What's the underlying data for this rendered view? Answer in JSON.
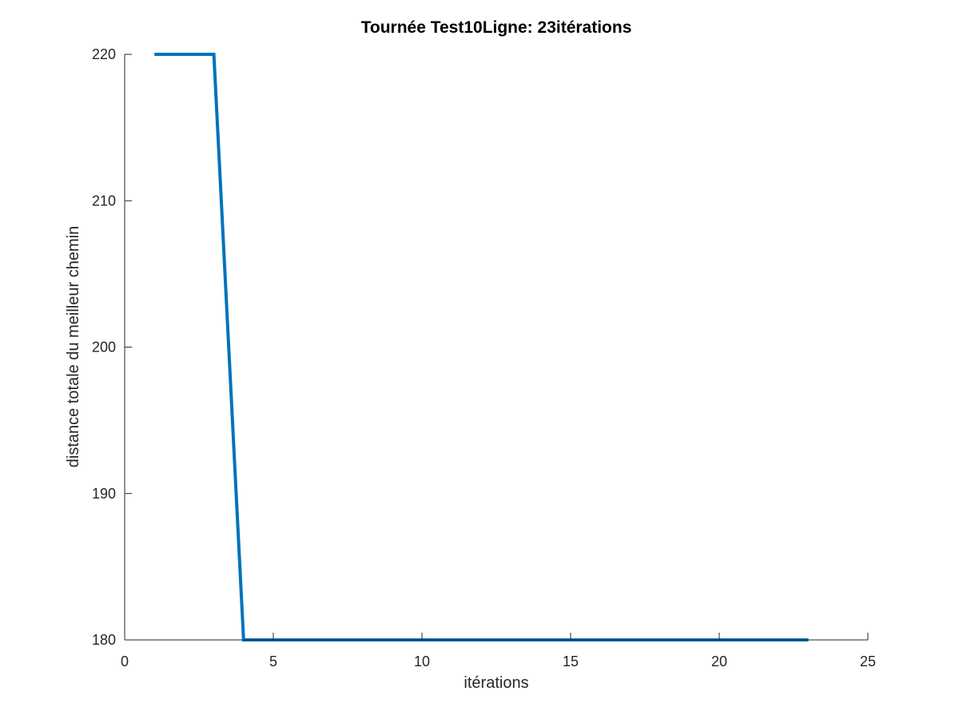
{
  "chart_data": {
    "type": "line",
    "title": "Tournée Test10Ligne: 23itérations",
    "xlabel": "itérations",
    "ylabel": "distance totale du meilleur chemin",
    "xlim": [
      0,
      25
    ],
    "ylim": [
      180,
      220
    ],
    "xticks": [
      0,
      5,
      10,
      15,
      20,
      25
    ],
    "yticks": [
      180,
      190,
      200,
      210,
      220
    ],
    "grid": false,
    "series": [
      {
        "color": "#0072BD",
        "x": [
          1,
          2,
          3,
          4,
          5,
          6,
          7,
          8,
          9,
          10,
          11,
          12,
          13,
          14,
          15,
          16,
          17,
          18,
          19,
          20,
          21,
          22,
          23
        ],
        "y": [
          220,
          220,
          220,
          180,
          180,
          180,
          180,
          180,
          180,
          180,
          180,
          180,
          180,
          180,
          180,
          180,
          180,
          180,
          180,
          180,
          180,
          180,
          180
        ]
      }
    ]
  }
}
